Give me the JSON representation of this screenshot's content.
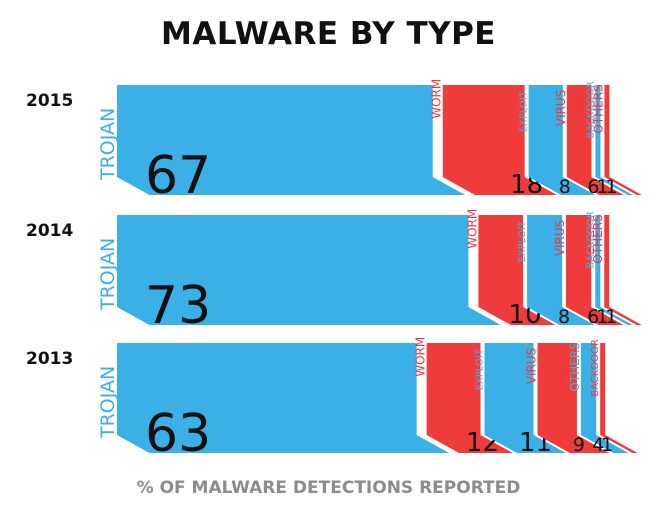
{
  "title": "MALWARE BY TYPE",
  "footer": "% OF MALWARE DETECTIONS REPORTED",
  "colors": {
    "blue": "#3bb0e6",
    "red": "#ef3b3b"
  },
  "chart_data": {
    "type": "bar",
    "title": "MALWARE BY TYPE",
    "xlabel": "% OF MALWARE DETECTIONS REPORTED",
    "unit": "%",
    "years": [
      {
        "year": "2015",
        "segments": [
          {
            "name": "TROJAN",
            "value": 67,
            "color": "#3bb0e6"
          },
          {
            "name": "WORM",
            "value": 18,
            "color": "#ef3b3b"
          },
          {
            "name": "EXPLOIT",
            "value": 8,
            "color": "#3bb0e6"
          },
          {
            "name": "VIRUS",
            "value": 6,
            "color": "#ef3b3b"
          },
          {
            "name": "BACKDOOR",
            "value": 1,
            "color": "#3bb0e6"
          },
          {
            "name": "OTHERS",
            "value": 1,
            "color": "#ef3b3b"
          }
        ]
      },
      {
        "year": "2014",
        "segments": [
          {
            "name": "TROJAN",
            "value": 73,
            "color": "#3bb0e6"
          },
          {
            "name": "WORM",
            "value": 10,
            "color": "#ef3b3b"
          },
          {
            "name": "EXPLOIT",
            "value": 8,
            "color": "#3bb0e6"
          },
          {
            "name": "VIRUS",
            "value": 6,
            "color": "#ef3b3b"
          },
          {
            "name": "BACKDOOR",
            "value": 1,
            "color": "#3bb0e6"
          },
          {
            "name": "OTHERS",
            "value": 1,
            "color": "#ef3b3b"
          }
        ]
      },
      {
        "year": "2013",
        "segments": [
          {
            "name": "TROJAN",
            "value": 63,
            "color": "#3bb0e6"
          },
          {
            "name": "WORM",
            "value": 12,
            "color": "#ef3b3b"
          },
          {
            "name": "EXPLOIT",
            "value": 11,
            "color": "#3bb0e6"
          },
          {
            "name": "VIRUS",
            "value": 9,
            "color": "#ef3b3b"
          },
          {
            "name": "OTHERS",
            "value": 4,
            "color": "#3bb0e6"
          },
          {
            "name": "BACKDOOR",
            "value": 1,
            "color": "#ef3b3b"
          }
        ]
      }
    ]
  }
}
